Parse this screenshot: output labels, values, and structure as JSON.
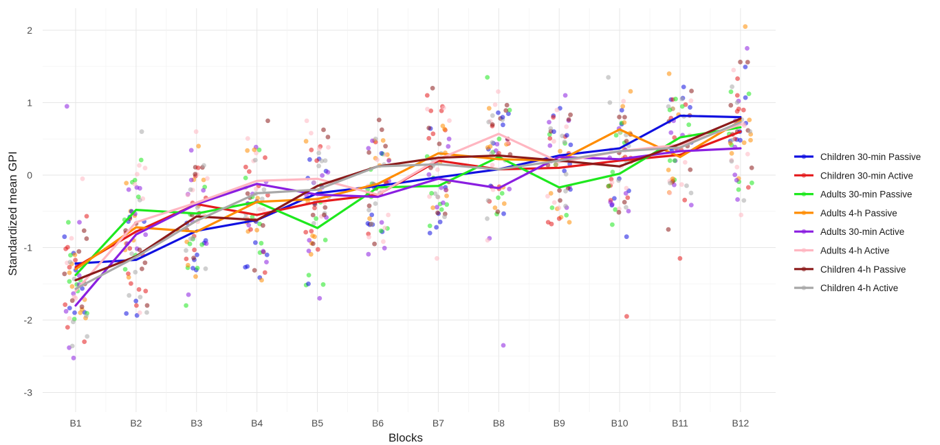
{
  "chart_data": {
    "type": "line",
    "xlabel": "Blocks",
    "ylabel": "Standardized mean GPI",
    "categories": [
      "B1",
      "B2",
      "B3",
      "B4",
      "B5",
      "B6",
      "B7",
      "B8",
      "B9",
      "B10",
      "B11",
      "B12"
    ],
    "ylim": [
      -3.25,
      2.2
    ],
    "yticks": [
      2,
      1,
      0,
      -1,
      -2,
      -3
    ],
    "grid": true,
    "legend_position": "right",
    "series": [
      {
        "name": "Children 30-min Passive",
        "color": "#1010e0",
        "values": [
          -1.22,
          -1.17,
          -0.77,
          -0.62,
          -0.25,
          -0.15,
          -0.03,
          0.08,
          0.27,
          0.37,
          0.82,
          0.8
        ]
      },
      {
        "name": "Children 30-min Active",
        "color": "#e41a1c",
        "values": [
          -1.27,
          -0.78,
          -0.4,
          -0.55,
          -0.37,
          -0.27,
          0.2,
          0.08,
          0.1,
          0.2,
          0.28,
          0.6
        ]
      },
      {
        "name": "Adults 30-min Passive",
        "color": "#1ee81e",
        "values": [
          -1.38,
          -0.48,
          -0.53,
          -0.37,
          -0.73,
          -0.17,
          -0.15,
          0.25,
          -0.17,
          0.02,
          0.52,
          0.66
        ]
      },
      {
        "name": "Adults 4-h Passive",
        "color": "#ff8c00",
        "values": [
          -1.3,
          -0.72,
          -0.78,
          -0.37,
          -0.33,
          -0.12,
          0.3,
          0.22,
          0.2,
          0.63,
          0.25,
          0.75
        ]
      },
      {
        "name": "Adults 30-min Active",
        "color": "#8a1ee0",
        "values": [
          -1.8,
          -0.82,
          -0.4,
          -0.12,
          -0.27,
          -0.3,
          -0.05,
          -0.18,
          0.25,
          0.22,
          0.33,
          0.37
        ]
      },
      {
        "name": "Adults 4-h Active",
        "color": "#ffb6c1",
        "values": [
          -1.6,
          -0.65,
          -0.38,
          -0.08,
          -0.05,
          -0.27,
          0.22,
          0.57,
          0.18,
          0.33,
          0.42,
          0.7
        ]
      },
      {
        "name": "Children 4-h Passive",
        "color": "#8b1a1a",
        "values": [
          -1.45,
          -1.12,
          -0.57,
          -0.62,
          -0.15,
          0.12,
          0.24,
          0.27,
          0.2,
          0.12,
          0.43,
          0.78
        ]
      },
      {
        "name": "Children 4-h Active",
        "color": "#a8a8a8",
        "values": [
          -1.57,
          -1.13,
          -0.63,
          -0.25,
          -0.2,
          0.12,
          0.15,
          0.08,
          0.2,
          0.33,
          0.38,
          0.73
        ]
      }
    ],
    "individual_points": [
      [
        -1.9,
        -2.3,
        -1.6,
        -1.1,
        0.95,
        -0.05,
        -1.5,
        -1.2,
        -0.85,
        -2.1,
        -1.45,
        -1.9,
        -0.65
      ],
      [
        -1.8,
        -1.3,
        -0.9,
        -0.2,
        -1.9,
        -0.6,
        0.6,
        -0.5,
        -1.6,
        -0.3
      ],
      [
        -1.8,
        -1.4,
        -1.65,
        0.6,
        -0.55,
        -0.2,
        -1.1,
        0.1,
        -0.95,
        0.4
      ],
      [
        -1.45,
        -1.05,
        -0.6,
        0.75,
        -0.2,
        -1.1,
        -0.75,
        -0.3,
        0.35,
        -1.2
      ],
      [
        -1.7,
        0.75,
        -0.55,
        -0.3,
        -1.5,
        0.2,
        -0.6,
        -0.85,
        -0.9,
        -0.1
      ],
      [
        -0.55,
        -0.95,
        0.5,
        0.3,
        -0.1,
        -0.3,
        -0.6,
        0.2,
        -0.15,
        0.4
      ],
      [
        1.2,
        0.3,
        -0.8,
        1.1,
        -0.25,
        -0.45,
        0.5,
        -1.15,
        0.1,
        -0.3
      ],
      [
        0.45,
        -0.15,
        0.3,
        1.35,
        -0.45,
        -2.35,
        -0.9,
        0.5,
        -0.35,
        0.8
      ],
      [
        0.6,
        0.3,
        -0.45,
        -0.65,
        1.1,
        0.9,
        -0.35,
        0.15,
        0.55,
        -0.6
      ],
      [
        -1.95,
        0.55,
        0.95,
        0.35,
        -0.1,
        0.8,
        1.35,
        -0.85,
        0.25,
        -0.15
      ],
      [
        0.9,
        1.4,
        0.75,
        0.55,
        -0.75,
        1.05,
        0.35,
        -1.15,
        0.2,
        -0.05
      ],
      [
        2.05,
        1.75,
        1.45,
        0.1,
        -0.35,
        0.6,
        1.1,
        -0.2,
        0.3,
        0.75,
        -0.55
      ]
    ]
  }
}
